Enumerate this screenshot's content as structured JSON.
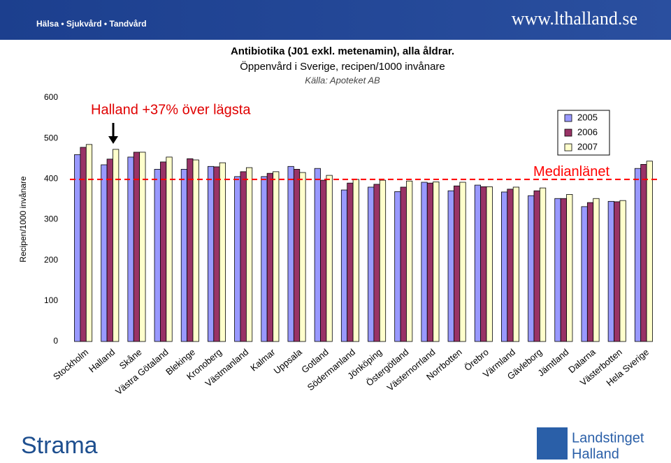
{
  "header": {
    "tagline": "Hälsa • Sjukvård • Tandvård",
    "website": "www.lthalland.se"
  },
  "chart_data": {
    "type": "bar",
    "title": "Antibiotika (J01 exkl. metenamin), alla åldrar.",
    "subtitle": "Öppenvård i Sverige, recipen/1000 invånare",
    "source": "Källa: Apoteket AB",
    "annotation": "Halland +37% över lägsta",
    "y_label": "Recipen/1000 invånare",
    "categories": [
      "Stockholm",
      "Halland",
      "Skåne",
      "Västra Götaland",
      "Blekinge",
      "Kronoberg",
      "Västmanland",
      "Kalmar",
      "Uppsala",
      "Gotland",
      "Södermanland",
      "Jönköping",
      "Östergötland",
      "Västernorrland",
      "Norrbotten",
      "Örebro",
      "Värmland",
      "Gävleborg",
      "Jämtland",
      "Dalarna",
      "Västerbotten",
      "Hela Sverige"
    ],
    "series": [
      {
        "name": "2005",
        "color": "#9999ff",
        "values": [
          460,
          435,
          454,
          424,
          424,
          431,
          406,
          406,
          431,
          426,
          373,
          380,
          369,
          392,
          371,
          385,
          368,
          359,
          352,
          332,
          345,
          426
        ]
      },
      {
        "name": "2006",
        "color": "#993366",
        "values": [
          478,
          449,
          466,
          442,
          450,
          430,
          418,
          414,
          424,
          397,
          390,
          387,
          380,
          390,
          383,
          381,
          375,
          371,
          352,
          342,
          344,
          436
        ]
      },
      {
        "name": "2007",
        "color": "#ffffcc",
        "values": [
          485,
          473,
          466,
          454,
          447,
          440,
          428,
          418,
          416,
          409,
          399,
          397,
          395,
          393,
          392,
          381,
          380,
          378,
          362,
          352,
          347,
          444
        ]
      }
    ],
    "median_line": {
      "value": 399,
      "label": "Medianlänet",
      "color": "#ff0000"
    },
    "ylim": [
      0,
      600
    ],
    "yticks": [
      0,
      100,
      200,
      300,
      400,
      500,
      600
    ],
    "legend": "top-right"
  },
  "footer": {
    "left_logo": "Strama",
    "right_logo": [
      "Landstinget",
      "Halland"
    ]
  }
}
